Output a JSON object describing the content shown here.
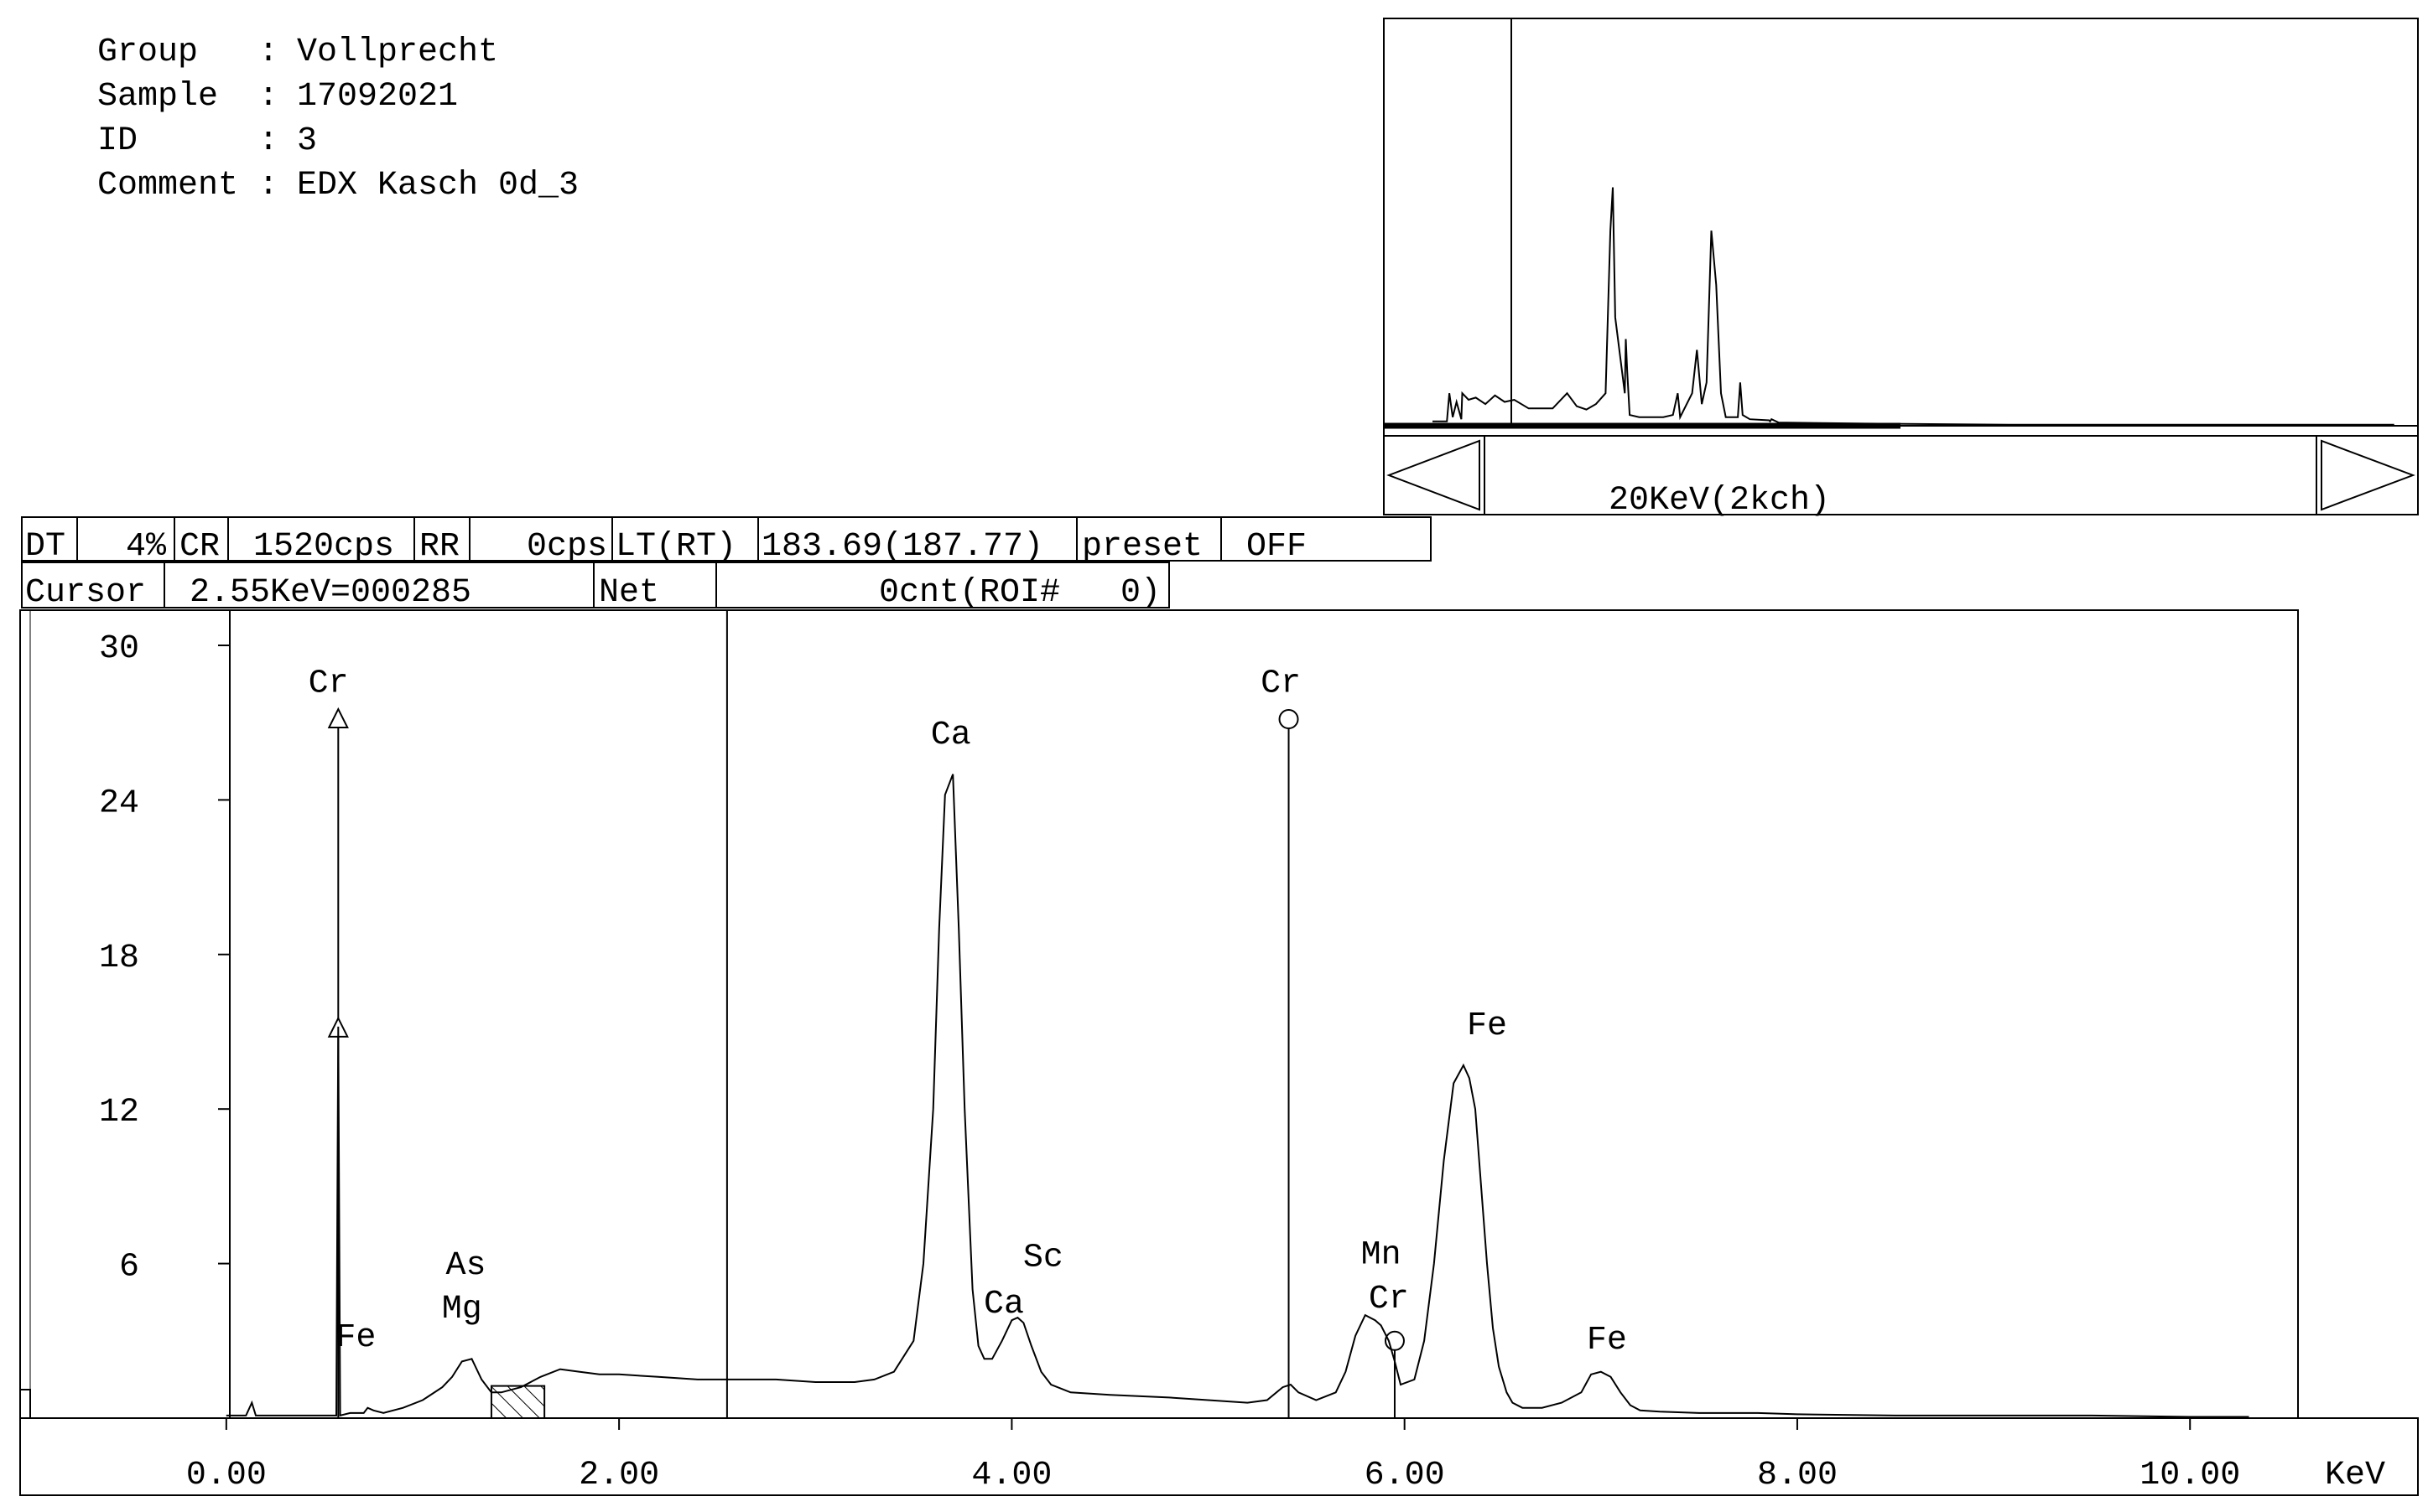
{
  "info": {
    "rows": [
      {
        "key": "Group  ",
        "sep": ":",
        "value": "Vollprecht"
      },
      {
        "key": "Sample ",
        "sep": ":",
        "value": "17092021"
      },
      {
        "key": "ID     ",
        "sep": ":",
        "value": "3"
      },
      {
        "key": "Comment",
        "sep": ":",
        "value": "EDX Kasch 0d_3"
      }
    ]
  },
  "status_bar": {
    "dt_label": "DT",
    "dt_value": "4%",
    "cr_label": "CR",
    "cr_value": "1520cps",
    "rr_label": "RR",
    "rr_value": "0cps",
    "lt_label": "LT(RT)",
    "lt_value": "183.69(187.77)",
    "preset_label": "preset",
    "preset_value": "OFF"
  },
  "cursor_bar": {
    "cursor_label": "Cursor",
    "cursor_value": "2.55KeV=000285",
    "net_label": "Net",
    "net_value": "0cnt(ROI#   0)"
  },
  "overview": {
    "range_label": "20KeV(2kch)",
    "scroll_left": "scroll-left",
    "scroll_right": "scroll-right"
  },
  "chart_data": {
    "type": "line",
    "xlabel": "KeV",
    "ylabel": "",
    "xlim": [
      -1.05,
      10.55
    ],
    "ylim": [
      0,
      30
    ],
    "x_ticks": [
      "0.00",
      "2.00",
      "4.00",
      "6.00",
      "8.00",
      "10.00"
    ],
    "y_ticks": [
      "6",
      "12",
      "18",
      "24",
      "30"
    ],
    "cursor_kev": 2.55,
    "markers": [
      {
        "element": "Cr",
        "kev": 0.57,
        "type": "triangle",
        "height": 27.2
      },
      {
        "element": "Cr",
        "kev": 5.41,
        "type": "circle",
        "height": 27.2
      }
    ],
    "peak_labels": [
      {
        "text": "Cr",
        "kev": 0.52,
        "y": 28.2
      },
      {
        "text": "Fe",
        "kev": 0.66,
        "y": 2.8
      },
      {
        "text": "As",
        "kev": 1.22,
        "y": 5.6
      },
      {
        "text": "Mg",
        "kev": 1.2,
        "y": 3.9
      },
      {
        "text": "Ca",
        "kev": 3.69,
        "y": 26.2
      },
      {
        "text": "Sc",
        "kev": 4.16,
        "y": 5.9
      },
      {
        "text": "Ca",
        "kev": 3.96,
        "y": 4.1
      },
      {
        "text": "Cr",
        "kev": 5.37,
        "y": 28.2
      },
      {
        "text": "Mn",
        "kev": 5.88,
        "y": 6.0
      },
      {
        "text": "Cr",
        "kev": 5.92,
        "y": 4.3
      },
      {
        "text": "Fe",
        "kev": 6.42,
        "y": 14.9
      },
      {
        "text": "Fe",
        "kev": 7.03,
        "y": 2.7
      }
    ],
    "series": [
      {
        "x": [
          0.0,
          0.1,
          0.13,
          0.15,
          0.18,
          0.25,
          0.4,
          0.56,
          0.57,
          0.58,
          0.63,
          0.7,
          0.72,
          0.75,
          0.8,
          0.9,
          1.0,
          1.1,
          1.15,
          1.2,
          1.25,
          1.3,
          1.35,
          1.4,
          1.5,
          1.6,
          1.7,
          1.8,
          1.9,
          2.0,
          2.2,
          2.4,
          2.6,
          2.8,
          3.0,
          3.2,
          3.3,
          3.4,
          3.5,
          3.55,
          3.6,
          3.63,
          3.66,
          3.7,
          3.73,
          3.76,
          3.8,
          3.83,
          3.86,
          3.9,
          3.95,
          4.0,
          4.03,
          4.06,
          4.1,
          4.15,
          4.2,
          4.3,
          4.5,
          4.8,
          5.0,
          5.2,
          5.3,
          5.38,
          5.42,
          5.46,
          5.55,
          5.65,
          5.7,
          5.75,
          5.8,
          5.85,
          5.88,
          5.92,
          5.95,
          5.98,
          6.05,
          6.1,
          6.15,
          6.2,
          6.25,
          6.3,
          6.33,
          6.36,
          6.39,
          6.42,
          6.45,
          6.48,
          6.52,
          6.55,
          6.6,
          6.7,
          6.8,
          6.9,
          6.95,
          7.0,
          7.05,
          7.1,
          7.15,
          7.2,
          7.3,
          7.5,
          7.8,
          8.0,
          8.5,
          9.0,
          9.5,
          10.0,
          10.3
        ],
        "y": [
          0.1,
          0.1,
          0.6,
          0.1,
          0.1,
          0.1,
          0.1,
          0.1,
          15.2,
          0.1,
          0.2,
          0.2,
          0.4,
          0.3,
          0.2,
          0.4,
          0.7,
          1.2,
          1.6,
          2.2,
          2.3,
          1.5,
          1.0,
          1.0,
          1.2,
          1.6,
          1.9,
          1.8,
          1.7,
          1.7,
          1.6,
          1.5,
          1.5,
          1.5,
          1.4,
          1.4,
          1.5,
          1.8,
          3.0,
          6.0,
          12.0,
          19.0,
          24.2,
          25.0,
          19.0,
          12.0,
          5.0,
          2.8,
          2.3,
          2.3,
          3.0,
          3.8,
          3.9,
          3.7,
          2.8,
          1.8,
          1.3,
          1.0,
          0.9,
          0.8,
          0.7,
          0.6,
          0.7,
          1.2,
          1.3,
          1.0,
          0.7,
          1.0,
          1.8,
          3.2,
          4.0,
          3.8,
          3.6,
          3.0,
          2.2,
          1.3,
          1.5,
          3.0,
          6.0,
          10.0,
          13.0,
          13.7,
          13.2,
          12.0,
          9.0,
          6.0,
          3.5,
          2.0,
          1.0,
          0.6,
          0.4,
          0.4,
          0.6,
          1.0,
          1.7,
          1.8,
          1.6,
          1.0,
          0.5,
          0.3,
          0.25,
          0.2,
          0.2,
          0.15,
          0.1,
          0.1,
          0.1,
          0.05,
          0.05
        ]
      }
    ],
    "roi_hatch_kev": [
      1.35,
      1.62
    ],
    "overview": {
      "xlim": [
        0,
        20
      ],
      "ylim": [
        0,
        30
      ],
      "view_start_kev": 0.0,
      "x": [
        0.0,
        0.3,
        0.35,
        0.42,
        0.5,
        0.6,
        0.62,
        0.75,
        0.9,
        1.1,
        1.3,
        1.5,
        1.7,
        2.0,
        2.5,
        2.8,
        3.0,
        3.2,
        3.4,
        3.6,
        3.7,
        3.75,
        3.8,
        4.0,
        4.02,
        4.05,
        4.1,
        4.3,
        4.8,
        5.0,
        5.1,
        5.15,
        5.4,
        5.5,
        5.6,
        5.7,
        5.8,
        5.9,
        6.0,
        6.1,
        6.35,
        6.4,
        6.45,
        6.6,
        7.0,
        7.02,
        7.05,
        7.2,
        9.0,
        12.0,
        20.0
      ],
      "y": [
        0.4,
        0.4,
        3.0,
        0.8,
        2.2,
        0.6,
        3.0,
        2.4,
        2.6,
        2.0,
        2.8,
        2.2,
        2.4,
        1.6,
        1.6,
        3.0,
        1.8,
        1.5,
        2.0,
        3.0,
        18.0,
        22.0,
        10.0,
        3.0,
        8.0,
        5.0,
        1.0,
        0.8,
        0.8,
        1.0,
        3.0,
        0.8,
        3.0,
        7.0,
        2.0,
        4.0,
        18.0,
        13.0,
        3.0,
        0.8,
        0.8,
        4.0,
        1.0,
        0.6,
        0.5,
        0.4,
        0.6,
        0.3,
        0.2,
        0.1,
        0.1
      ]
    }
  }
}
